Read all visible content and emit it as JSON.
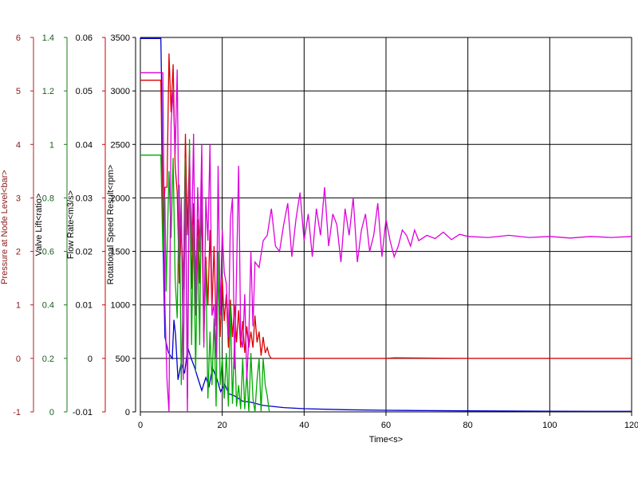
{
  "chart_data": {
    "type": "line",
    "xlabel": "Time<s>",
    "xlim": [
      0,
      120
    ],
    "x_ticks": [
      "0",
      "20",
      "40",
      "60",
      "80",
      "100",
      "120"
    ],
    "grid": true,
    "axes": [
      {
        "id": "pressure",
        "label": "Pressure at Node Level<bar>",
        "color": "#8b1a1a",
        "ylim": [
          -1,
          6
        ],
        "ticks": [
          "-1",
          "0",
          "1",
          "2",
          "3",
          "4",
          "5",
          "6"
        ]
      },
      {
        "id": "valve",
        "label": "Valve Lift<ratio>",
        "color": "#1a5e1a",
        "ylim": [
          0,
          1.4
        ],
        "ticks": [
          "0",
          "0.2",
          "0.4",
          "0.6",
          "0.8",
          "1",
          "1.2",
          "1.4"
        ]
      },
      {
        "id": "flow",
        "label": "Flow Rate<m3/s>",
        "color": "#000000",
        "ylim": [
          -0.01,
          0.06
        ],
        "ticks": [
          "-0.01",
          "0",
          "0.01",
          "0.02",
          "0.03",
          "0.04",
          "0.05",
          "0.06"
        ]
      },
      {
        "id": "speed",
        "label": "Rotational Speed Result<rpm>",
        "color": "#000000",
        "ylim": [
          0,
          3500
        ],
        "ticks": [
          "0",
          "500",
          "1000",
          "1500",
          "2000",
          "2500",
          "3000",
          "3500"
        ]
      }
    ],
    "series": [
      {
        "axis": "speed",
        "color": "#0000cc",
        "x": [
          0,
          5,
          5.2,
          5.6,
          6,
          6.8,
          7.4,
          7.8,
          8.2,
          8.6,
          9.2,
          10,
          10.8,
          11.6,
          12.4,
          13.2,
          14,
          15,
          16,
          16.8,
          17.6,
          18.6,
          19.6,
          20.6,
          21.6,
          23,
          25,
          27,
          30,
          35,
          40,
          50,
          60,
          70,
          80,
          90,
          100,
          110,
          120
        ],
        "y": [
          3490,
          3490,
          3000,
          1500,
          700,
          560,
          520,
          500,
          860,
          720,
          300,
          460,
          360,
          600,
          500,
          420,
          320,
          200,
          320,
          240,
          410,
          320,
          190,
          260,
          170,
          150,
          100,
          90,
          60,
          40,
          30,
          20,
          15,
          12,
          10,
          8,
          6,
          5,
          5
        ]
      },
      {
        "axis": "pressure",
        "color": "#dd0000",
        "x": [
          0,
          5,
          5.5,
          6,
          6.5,
          7,
          7.5,
          8,
          8.5,
          9,
          9.5,
          10,
          10.5,
          11,
          11.5,
          12,
          12.5,
          13,
          13.5,
          14,
          14.5,
          15,
          15.5,
          16,
          16.5,
          17,
          17.5,
          18,
          18.5,
          19,
          19.5,
          20,
          20.5,
          21,
          21.5,
          22,
          22.5,
          23,
          23.5,
          24,
          24.5,
          25,
          25.5,
          26,
          26.5,
          27,
          27.5,
          28,
          28.5,
          29,
          29.5,
          30,
          30.5,
          31,
          31.5,
          32,
          40,
          60,
          62,
          80,
          100,
          120
        ],
        "y": [
          5.2,
          5.2,
          2.4,
          3.2,
          3.2,
          5.7,
          4.6,
          5.5,
          3.6,
          3.1,
          1.4,
          2.5,
          1.3,
          4.2,
          2.3,
          3.9,
          1.3,
          2.9,
          1.5,
          2.6,
          1.4,
          2.8,
          0.3,
          1.9,
          1.0,
          2.4,
          0.9,
          2.1,
          0.6,
          1.6,
          0.4,
          1.5,
          0.7,
          1.2,
          0.2,
          1.1,
          0.4,
          1.0,
          0.3,
          0.9,
          0.2,
          0.7,
          0.1,
          0.6,
          0.2,
          0.5,
          0.2,
          0.8,
          0.3,
          0.5,
          0.05,
          0.4,
          0.1,
          0.2,
          0.05,
          0.0,
          0.0,
          0.0,
          0.01,
          0.0,
          0.0,
          0.0
        ]
      },
      {
        "axis": "valve",
        "color": "#00aa00",
        "x": [
          0,
          5,
          5.5,
          6,
          6.3,
          7,
          7.5,
          8,
          8.5,
          9,
          9.5,
          10,
          10.5,
          11,
          11.5,
          12,
          12.5,
          13,
          13.5,
          14,
          14.5,
          15,
          15.5,
          16,
          16.5,
          17,
          17.5,
          18,
          18.5,
          19,
          19.5,
          20,
          20.5,
          21,
          21.5,
          22,
          22.5,
          23,
          23.5,
          24,
          24.5,
          25,
          25.5,
          26,
          26.5,
          27,
          27.5,
          28,
          28.5,
          29,
          29.5,
          30,
          30.5,
          31,
          31.5
        ],
        "y": [
          0.96,
          0.96,
          0.6,
          0.8,
          0.45,
          0.9,
          0.65,
          0.95,
          0.5,
          0.35,
          0.85,
          0.1,
          0.5,
          0.95,
          0.05,
          1.02,
          0.25,
          0.7,
          0.15,
          0.65,
          0.25,
          0.95,
          0.3,
          0.55,
          0.05,
          0.3,
          0.1,
          0.35,
          0.02,
          0.6,
          0.1,
          0.2,
          0.05,
          0.22,
          0.02,
          0.4,
          0.03,
          0.28,
          0.02,
          0.1,
          0.01,
          0.2,
          0.01,
          0.15,
          0.0,
          0.22,
          0.05,
          0.0,
          0.12,
          0.2,
          0.0,
          0.2,
          0.1,
          0.06,
          0.0
        ]
      },
      {
        "axis": "speed",
        "color": "#dd00dd",
        "x": [
          0,
          5.5,
          6,
          6.5,
          7,
          7.5,
          8,
          8.5,
          9,
          9.5,
          10,
          10.5,
          11,
          11.5,
          12,
          12.5,
          13,
          13.5,
          14,
          14.5,
          15,
          15.5,
          16,
          16.5,
          17,
          17.5,
          18,
          18.5,
          19,
          19.5,
          20,
          20.5,
          21,
          21.5,
          22,
          22.5,
          23,
          23.5,
          24,
          24.5,
          25,
          25.5,
          26,
          26.5,
          27,
          27.5,
          28,
          29,
          30,
          31,
          32,
          33,
          34,
          35,
          36,
          37,
          38,
          39,
          40,
          41,
          42,
          43,
          44,
          45,
          46,
          47,
          48,
          49,
          50,
          51,
          52,
          53,
          54,
          55,
          56,
          57,
          58,
          59,
          60,
          61,
          62,
          63,
          64,
          65,
          66,
          67,
          68,
          70,
          72,
          74,
          76,
          78,
          80,
          85,
          90,
          95,
          100,
          105,
          110,
          115,
          120
        ],
        "y": [
          3170,
          3170,
          1000,
          300,
          0,
          2700,
          3000,
          2400,
          3200,
          1400,
          2000,
          300,
          2200,
          0,
          2400,
          1500,
          2600,
          900,
          2100,
          1500,
          2500,
          600,
          2000,
          1600,
          2500,
          900,
          1000,
          500,
          2300,
          900,
          1700,
          1300,
          1200,
          700,
          1800,
          2000,
          400,
          1300,
          2300,
          700,
          600,
          1100,
          300,
          700,
          1500,
          800,
          1400,
          1350,
          1600,
          1650,
          1900,
          1550,
          1500,
          1750,
          1950,
          1450,
          1800,
          2050,
          1600,
          1850,
          1450,
          1900,
          1650,
          2100,
          1550,
          1850,
          1750,
          1400,
          1900,
          1650,
          2000,
          1400,
          1700,
          1850,
          1500,
          1650,
          1950,
          1450,
          1800,
          1600,
          1450,
          1550,
          1700,
          1650,
          1550,
          1700,
          1600,
          1650,
          1620,
          1680,
          1610,
          1660,
          1640,
          1630,
          1650,
          1630,
          1640,
          1625,
          1640,
          1630,
          1640
        ]
      }
    ]
  }
}
